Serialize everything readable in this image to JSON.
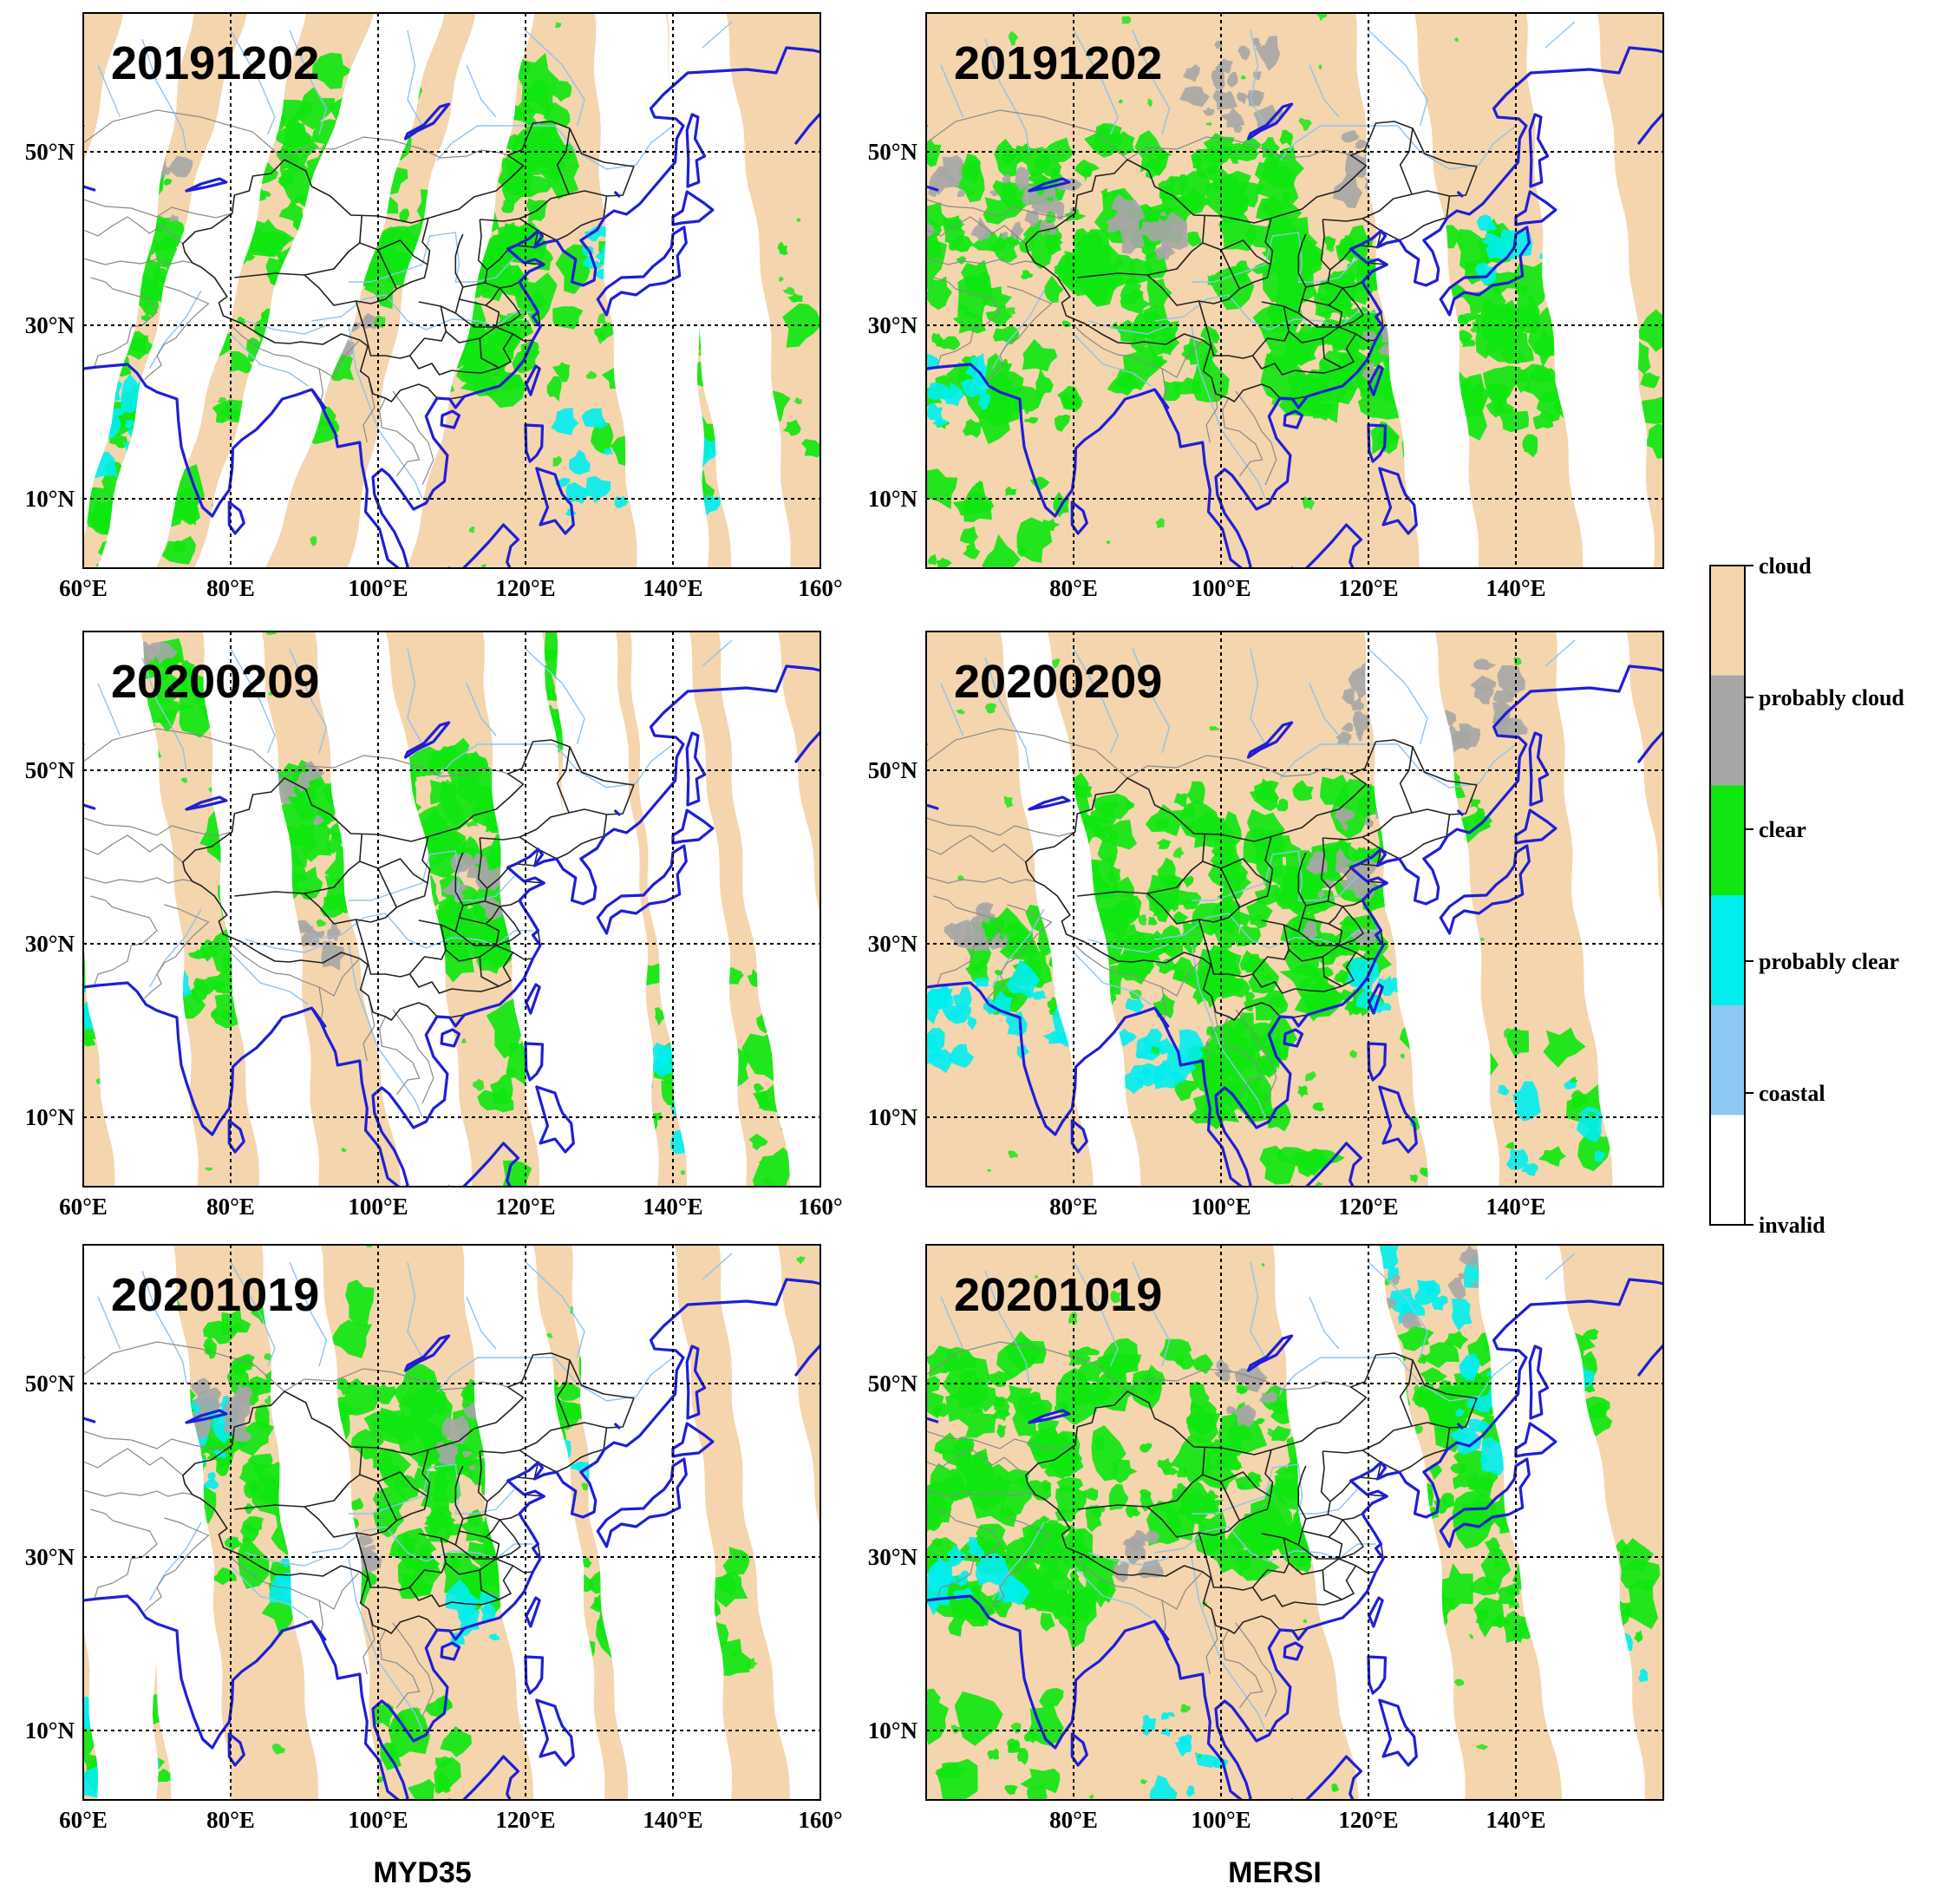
{
  "figure": {
    "column_labels": [
      "MYD35",
      "MERSI"
    ],
    "row_dates": [
      "20191202",
      "20200209",
      "20201019"
    ],
    "lat_ticks": [
      "50°N",
      "30°N",
      "10°N"
    ],
    "lon_ticks_left": [
      "60°E",
      "80°E",
      "100°E",
      "120°E",
      "140°E",
      "160°"
    ],
    "lon_ticks_right": [
      "80°E",
      "100°E",
      "120°E",
      "140°E"
    ]
  },
  "map_extent": {
    "lon_min": 60,
    "lon_max": 160,
    "lat_min": 2,
    "lat_max": 66
  },
  "gridlines": {
    "lon": [
      80,
      100,
      120,
      140
    ],
    "lat": [
      10,
      30,
      50
    ]
  },
  "legend": {
    "categories": [
      {
        "label": "cloud",
        "color": "#f4d5ad"
      },
      {
        "label": "probably cloud",
        "color": "#a6a6a6"
      },
      {
        "label": "clear",
        "color": "#10e610"
      },
      {
        "label": "probably clear",
        "color": "#00eeee"
      },
      {
        "label": "coastal",
        "color": "#8cc8f2"
      },
      {
        "label": "invalid",
        "color": "#ffffff"
      }
    ]
  },
  "colors": {
    "coastline": "#1f1fd6",
    "border": "#222222",
    "river": "#8fc3ee"
  }
}
